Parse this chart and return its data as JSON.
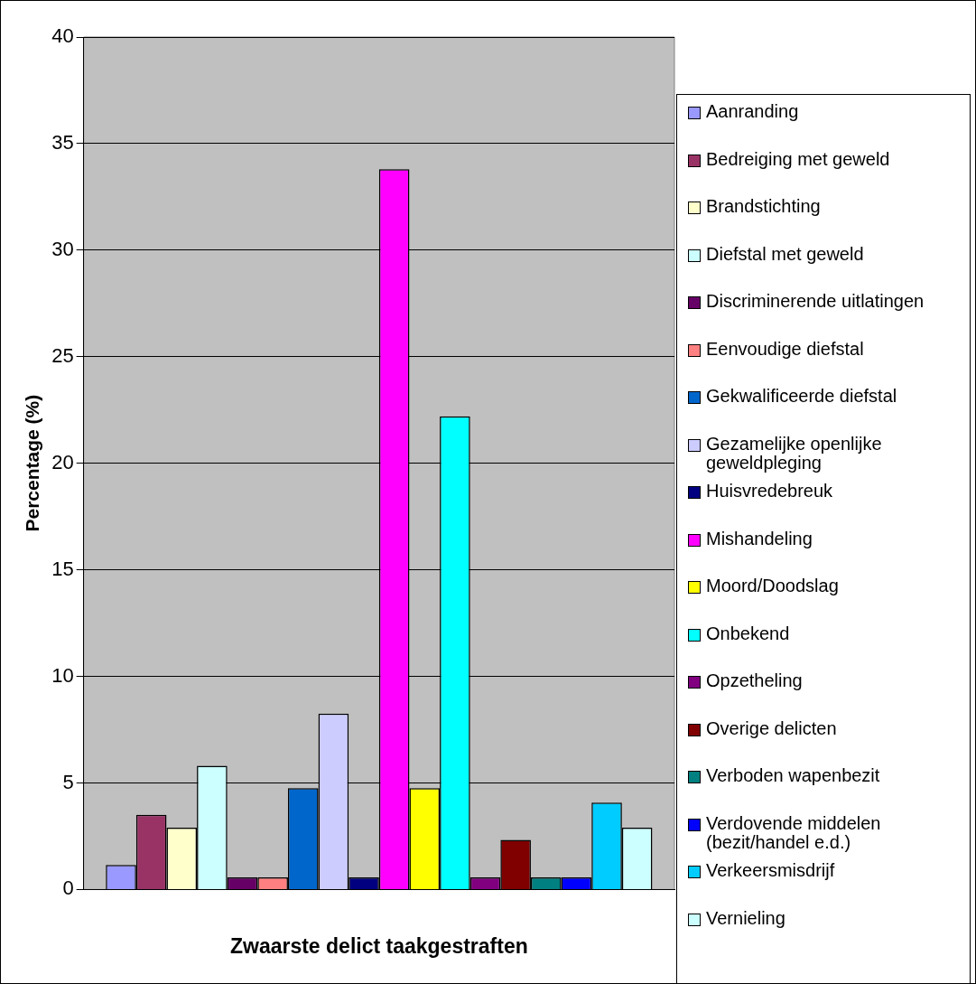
{
  "chart_data": {
    "type": "bar",
    "xlabel": "Zwaarste delict taakgestraften",
    "ylabel": "Percentage (%)",
    "categories": [
      null
    ],
    "ylim": [
      0,
      40
    ],
    "yticks": [
      0,
      5,
      10,
      15,
      20,
      25,
      30,
      35,
      40
    ],
    "grid": "y",
    "legend": "right",
    "series": [
      {
        "name": "Aanranding",
        "color": "#9999ff",
        "values": [
          1.15
        ]
      },
      {
        "name": "Bedreiging met geweld",
        "color": "#993366",
        "values": [
          3.5
        ]
      },
      {
        "name": "Brandstichting",
        "color": "#ffffcc",
        "values": [
          2.9
        ]
      },
      {
        "name": "Diefstal met geweld",
        "color": "#ccffff",
        "values": [
          5.8
        ]
      },
      {
        "name": "Discriminerende uitlatingen",
        "color": "#660066",
        "values": [
          0.57
        ]
      },
      {
        "name": "Eenvoudige diefstal",
        "color": "#ff8080",
        "values": [
          0.57
        ]
      },
      {
        "name": "Gekwalificeerde diefstal",
        "color": "#0066cc",
        "values": [
          4.75
        ]
      },
      {
        "name": "Gezamelijke openlijke geweldpleging",
        "color": "#ccccff",
        "values": [
          8.25
        ]
      },
      {
        "name": "Huisvredebreuk",
        "color": "#000080",
        "values": [
          0.57
        ]
      },
      {
        "name": "Mishandeling",
        "color": "#ff00ff",
        "values": [
          33.8
        ]
      },
      {
        "name": "Moord/Doodslag",
        "color": "#ffff00",
        "values": [
          4.75
        ]
      },
      {
        "name": "Onbekend",
        "color": "#00ffff",
        "values": [
          22.2
        ]
      },
      {
        "name": "Opzetheling",
        "color": "#800080",
        "values": [
          0.57
        ]
      },
      {
        "name": "Overige delicten",
        "color": "#800000",
        "values": [
          2.33
        ]
      },
      {
        "name": "Verboden wapenbezit",
        "color": "#008080",
        "values": [
          0.57
        ]
      },
      {
        "name": "Verdovende middelen (bezit/handel e.d.)",
        "color": "#0000ff",
        "values": [
          0.57
        ]
      },
      {
        "name": "Verkeersmisdrijf",
        "color": "#00ccff",
        "values": [
          4.08
        ]
      },
      {
        "name": "Vernieling",
        "color": "#ccffff",
        "values": [
          2.9
        ]
      }
    ]
  }
}
